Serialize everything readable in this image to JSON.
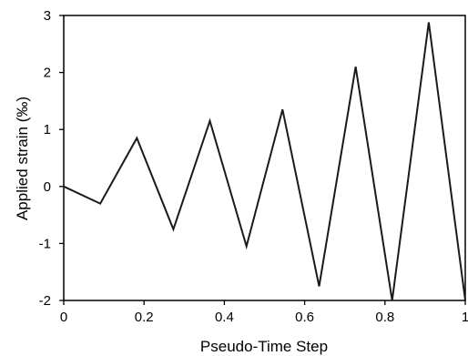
{
  "chart_data": {
    "type": "line",
    "title": "",
    "xlabel": "Pseudo-Time Step",
    "ylabel": "Applied strain (‰)",
    "xlim": [
      0,
      1
    ],
    "ylim": [
      -2,
      3
    ],
    "x_ticks": [
      0,
      0.2,
      0.4,
      0.6,
      0.8,
      1
    ],
    "x_tick_labels": [
      "0",
      "0.2",
      "0.4",
      "0.6",
      "0.8",
      "1"
    ],
    "y_ticks": [
      -2,
      -1,
      0,
      1,
      2,
      3
    ],
    "y_tick_labels": [
      "-2",
      "-1",
      "0",
      "1",
      "2",
      "3"
    ],
    "grid": false,
    "series": [
      {
        "color": "#1a1a1a",
        "x": [
          0,
          0.091,
          0.182,
          0.273,
          0.364,
          0.455,
          0.545,
          0.636,
          0.727,
          0.818,
          0.909,
          1.0
        ],
        "y": [
          0,
          -0.3,
          0.85,
          -0.75,
          1.15,
          -1.05,
          1.35,
          -1.75,
          2.1,
          -2.0,
          2.88,
          -2.0
        ]
      }
    ]
  }
}
